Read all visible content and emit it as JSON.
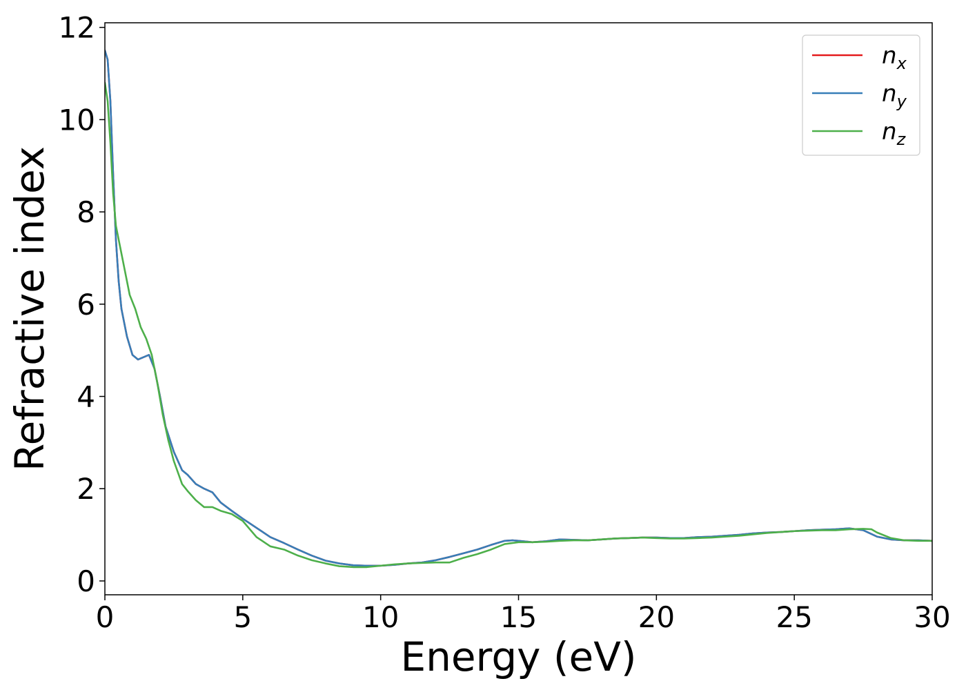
{
  "chart_data": {
    "type": "line",
    "title": "",
    "xlabel": "Energy (eV)",
    "ylabel": "Refractive index",
    "xlim": [
      0,
      30
    ],
    "ylim": [
      -0.3,
      12.1
    ],
    "xticks": [
      0,
      5,
      10,
      15,
      20,
      25,
      30
    ],
    "yticks": [
      0,
      2,
      4,
      6,
      8,
      10,
      12
    ],
    "grid": false,
    "legend_position": "top-right",
    "series": [
      {
        "name": "n_x",
        "label_base": "n",
        "label_sub": "x",
        "color": "#e41a1c",
        "x": [
          0,
          0.1,
          0.2,
          0.3,
          0.4,
          0.5,
          0.6,
          0.8,
          1.0,
          1.2,
          1.4,
          1.6,
          1.8,
          2.0,
          2.2,
          2.5,
          2.8,
          3.0,
          3.3,
          3.6,
          3.9,
          4.2,
          4.6,
          5.0,
          5.5,
          6.0,
          6.5,
          7.0,
          7.5,
          8.0,
          8.5,
          9.0,
          9.5,
          10.0,
          10.5,
          11.0,
          11.5,
          12.0,
          12.5,
          13.0,
          13.5,
          14.0,
          14.5,
          14.8,
          15.0,
          15.5,
          16.0,
          16.5,
          17.0,
          17.5,
          18.0,
          18.5,
          19.0,
          19.5,
          20.0,
          20.5,
          21.0,
          21.5,
          22.0,
          22.5,
          23.0,
          23.5,
          24.0,
          24.5,
          25.0,
          25.5,
          26.0,
          26.5,
          27.0,
          27.5,
          28.0,
          28.5,
          29.0,
          29.5,
          30.0
        ],
        "y": [
          11.5,
          11.3,
          10.4,
          8.8,
          7.4,
          6.5,
          5.9,
          5.3,
          4.9,
          4.8,
          4.85,
          4.9,
          4.6,
          4.0,
          3.35,
          2.8,
          2.4,
          2.3,
          2.1,
          2.0,
          1.92,
          1.7,
          1.52,
          1.35,
          1.15,
          0.95,
          0.82,
          0.68,
          0.55,
          0.44,
          0.38,
          0.34,
          0.33,
          0.33,
          0.35,
          0.38,
          0.4,
          0.45,
          0.52,
          0.6,
          0.68,
          0.78,
          0.87,
          0.88,
          0.87,
          0.84,
          0.86,
          0.9,
          0.89,
          0.88,
          0.9,
          0.92,
          0.93,
          0.94,
          0.94,
          0.93,
          0.93,
          0.95,
          0.96,
          0.98,
          1.0,
          1.03,
          1.05,
          1.06,
          1.08,
          1.1,
          1.11,
          1.12,
          1.14,
          1.1,
          0.96,
          0.9,
          0.88,
          0.88,
          0.87
        ]
      },
      {
        "name": "n_y",
        "label_base": "n",
        "label_sub": "y",
        "color": "#377eb8",
        "x": [
          0,
          0.1,
          0.2,
          0.3,
          0.4,
          0.5,
          0.6,
          0.8,
          1.0,
          1.2,
          1.4,
          1.6,
          1.8,
          2.0,
          2.2,
          2.5,
          2.8,
          3.0,
          3.3,
          3.6,
          3.9,
          4.2,
          4.6,
          5.0,
          5.5,
          6.0,
          6.5,
          7.0,
          7.5,
          8.0,
          8.5,
          9.0,
          9.5,
          10.0,
          10.5,
          11.0,
          11.5,
          12.0,
          12.5,
          13.0,
          13.5,
          14.0,
          14.5,
          14.8,
          15.0,
          15.5,
          16.0,
          16.5,
          17.0,
          17.5,
          18.0,
          18.5,
          19.0,
          19.5,
          20.0,
          20.5,
          21.0,
          21.5,
          22.0,
          22.5,
          23.0,
          23.5,
          24.0,
          24.5,
          25.0,
          25.5,
          26.0,
          26.5,
          27.0,
          27.5,
          28.0,
          28.5,
          29.0,
          29.5,
          30.0
        ],
        "y": [
          11.5,
          11.3,
          10.4,
          8.8,
          7.4,
          6.5,
          5.9,
          5.3,
          4.9,
          4.8,
          4.85,
          4.9,
          4.6,
          4.0,
          3.35,
          2.8,
          2.4,
          2.3,
          2.1,
          2.0,
          1.92,
          1.7,
          1.52,
          1.35,
          1.15,
          0.95,
          0.82,
          0.68,
          0.55,
          0.44,
          0.38,
          0.34,
          0.33,
          0.33,
          0.35,
          0.38,
          0.4,
          0.45,
          0.52,
          0.6,
          0.68,
          0.78,
          0.87,
          0.88,
          0.87,
          0.84,
          0.86,
          0.9,
          0.89,
          0.88,
          0.9,
          0.92,
          0.93,
          0.94,
          0.94,
          0.93,
          0.93,
          0.95,
          0.96,
          0.98,
          1.0,
          1.03,
          1.05,
          1.06,
          1.08,
          1.1,
          1.11,
          1.12,
          1.14,
          1.1,
          0.96,
          0.9,
          0.88,
          0.88,
          0.87
        ]
      },
      {
        "name": "n_z",
        "label_base": "n",
        "label_sub": "z",
        "color": "#4daf4a",
        "x": [
          0,
          0.1,
          0.2,
          0.3,
          0.4,
          0.5,
          0.7,
          0.9,
          1.1,
          1.3,
          1.5,
          1.7,
          1.9,
          2.1,
          2.3,
          2.5,
          2.8,
          3.0,
          3.3,
          3.6,
          3.9,
          4.2,
          4.6,
          5.0,
          5.5,
          6.0,
          6.5,
          7.0,
          7.5,
          8.0,
          8.5,
          9.0,
          9.5,
          10.0,
          10.5,
          11.0,
          11.5,
          12.0,
          12.5,
          13.0,
          13.5,
          14.0,
          14.5,
          15.0,
          15.5,
          16.0,
          16.5,
          17.0,
          17.5,
          18.0,
          18.5,
          19.0,
          19.5,
          20.0,
          20.5,
          21.0,
          21.5,
          22.0,
          22.5,
          23.0,
          23.5,
          24.0,
          24.5,
          25.0,
          25.5,
          26.0,
          26.5,
          27.0,
          27.5,
          27.8,
          28.0,
          28.5,
          29.0,
          29.5,
          30.0
        ],
        "y": [
          10.8,
          10.4,
          9.5,
          8.4,
          7.7,
          7.4,
          6.8,
          6.2,
          5.9,
          5.5,
          5.25,
          4.9,
          4.3,
          3.6,
          3.05,
          2.6,
          2.1,
          1.95,
          1.75,
          1.6,
          1.6,
          1.52,
          1.45,
          1.3,
          0.95,
          0.75,
          0.68,
          0.55,
          0.45,
          0.38,
          0.32,
          0.3,
          0.3,
          0.33,
          0.36,
          0.38,
          0.39,
          0.4,
          0.4,
          0.5,
          0.58,
          0.68,
          0.8,
          0.84,
          0.84,
          0.85,
          0.87,
          0.88,
          0.88,
          0.9,
          0.92,
          0.93,
          0.94,
          0.93,
          0.92,
          0.92,
          0.93,
          0.94,
          0.96,
          0.98,
          1.01,
          1.04,
          1.06,
          1.08,
          1.09,
          1.1,
          1.1,
          1.12,
          1.13,
          1.12,
          1.05,
          0.93,
          0.88,
          0.87,
          0.87
        ]
      }
    ]
  }
}
